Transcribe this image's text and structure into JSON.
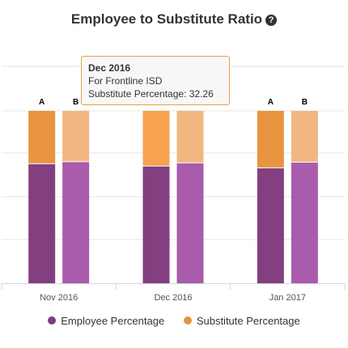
{
  "chart_data": {
    "type": "bar",
    "stacked": true,
    "title": "Employee to Substitute Ratio",
    "categories": [
      "Nov 2016",
      "Dec 2016",
      "Jan 2017"
    ],
    "stack_labels": [
      "A",
      "B"
    ],
    "ylim": [
      0,
      100
    ],
    "grid": true,
    "legend_position": "bottom",
    "series": [
      {
        "name": "Employee Percentage",
        "key": "employee",
        "values": {
          "A": [
            69.1,
            67.74,
            66.7
          ],
          "B": [
            70.3,
            69.6,
            70.0
          ]
        }
      },
      {
        "name": "Substitute Percentage",
        "key": "substitute",
        "values": {
          "A": [
            30.9,
            32.26,
            33.3
          ],
          "B": [
            29.7,
            30.4,
            30.0
          ]
        }
      }
    ],
    "colors": {
      "employee": {
        "A": "#833f80",
        "B": "#a95bac"
      },
      "substitute": {
        "A": "#e89440",
        "B": "#f2b780"
      },
      "substitute_hover": "#f7a34e"
    },
    "tooltip": {
      "title": "Dec 2016",
      "line1": "For Frontline ISD",
      "line2": "Substitute Percentage: 32.26"
    }
  }
}
